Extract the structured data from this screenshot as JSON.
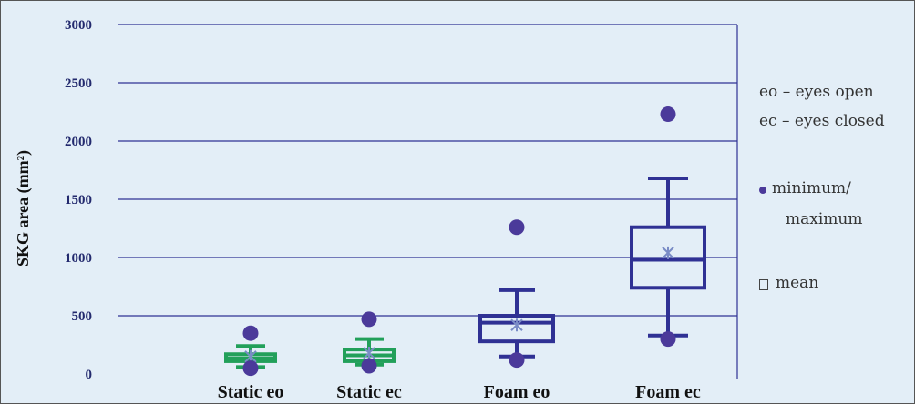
{
  "chart_data": {
    "type": "box",
    "ylabel": "SKG area (mm²)",
    "ylim": [
      0,
      3000
    ],
    "yticks": [
      0,
      500,
      1000,
      1500,
      2000,
      2500,
      3000
    ],
    "grid": true,
    "categories": [
      "Static eo",
      "Static ec",
      "Foam eo",
      "Foam ec"
    ],
    "boxes": [
      {
        "category": "Static eo",
        "color": "#22a05a",
        "min": 50,
        "whisker_low": 60,
        "q1": 110,
        "median": 135,
        "q3": 170,
        "whisker_high": 240,
        "max": 350,
        "mean": 150
      },
      {
        "category": "Static ec",
        "color": "#22a05a",
        "min": 70,
        "whisker_low": 80,
        "q1": 110,
        "median": 160,
        "q3": 210,
        "whisker_high": 300,
        "max": 470,
        "mean": 180
      },
      {
        "category": "Foam eo",
        "color": "#2f3194",
        "min": 120,
        "whisker_low": 150,
        "q1": 280,
        "median": 440,
        "q3": 500,
        "whisker_high": 720,
        "max": 1260,
        "mean": 420
      },
      {
        "category": "Foam ec",
        "color": "#2f3194",
        "min": 300,
        "whisker_low": 330,
        "q1": 740,
        "median": 980,
        "q3": 1260,
        "whisker_high": 1680,
        "max": 2230,
        "mean": 1040
      }
    ],
    "legend": {
      "placement": "right",
      "lines": [
        "eo – eyes open",
        "ec – eyes closed",
        "minimum/",
        "maximum",
        "mean"
      ],
      "marker_color": "#4b3a9a"
    }
  }
}
